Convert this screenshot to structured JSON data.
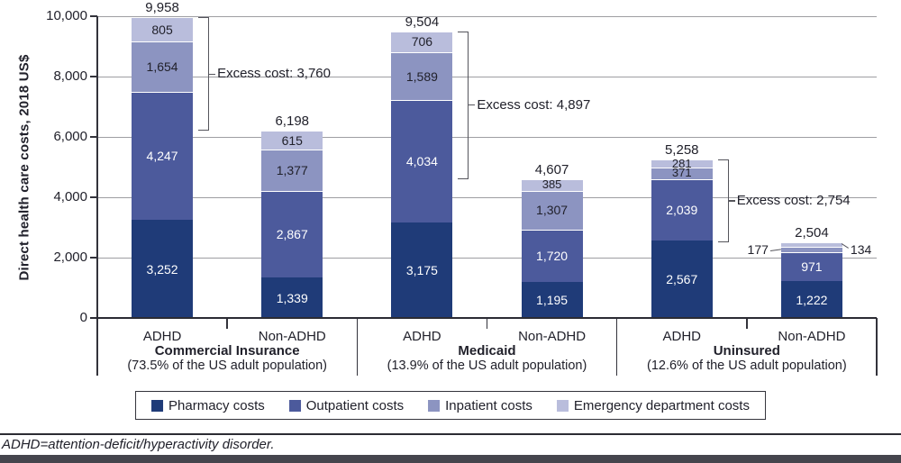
{
  "figure": {
    "y_axis_title": "Direct health care costs, 2018 US$",
    "footnote": "ADHD=attention-deficit/hyperactivity disorder.",
    "colors": {
      "text": "#21212b",
      "grid": "#9e9ea2",
      "axis": "#33333b",
      "bracket": "#55555c",
      "footer_bar": "#45454d"
    },
    "legend": [
      {
        "label": "Pharmacy costs",
        "color": "#1f3b78"
      },
      {
        "label": "Outpatient costs",
        "color": "#4c5a9c"
      },
      {
        "label": "Inpatient costs",
        "color": "#8c94c1"
      },
      {
        "label": "Emergency department costs",
        "color": "#b9bddc"
      }
    ]
  },
  "chart_data": {
    "type": "bar",
    "stacked": true,
    "title": "",
    "xlabel": "",
    "ylabel": "Direct health care costs, 2018 US$",
    "ylim": [
      0,
      10000
    ],
    "grid": true,
    "legend_position": "bottom",
    "yticks": [
      {
        "value": 0,
        "label": "0"
      },
      {
        "value": 2000,
        "label": "2,000"
      },
      {
        "value": 4000,
        "label": "4,000"
      },
      {
        "value": 6000,
        "label": "6,000"
      },
      {
        "value": 8000,
        "label": "8,000"
      },
      {
        "value": 10000,
        "label": "10,000"
      }
    ],
    "series_names": [
      "Pharmacy costs",
      "Outpatient costs",
      "Inpatient costs",
      "Emergency department costs"
    ],
    "groups": [
      {
        "name": "Commercial Insurance",
        "subtitle": "(73.5% of the US adult population)",
        "excess_cost_label": "Excess cost: 3,760",
        "excess_cost_value": 3760,
        "bars": [
          {
            "label": "ADHD",
            "total": 9958,
            "total_label": "9,958",
            "segments": [
              {
                "value": 3252,
                "label": "3,252"
              },
              {
                "value": 4247,
                "label": "4,247"
              },
              {
                "value": 1654,
                "label": "1,654"
              },
              {
                "value": 805,
                "label": "805"
              }
            ]
          },
          {
            "label": "Non-ADHD",
            "total": 6198,
            "total_label": "6,198",
            "segments": [
              {
                "value": 1339,
                "label": "1,339"
              },
              {
                "value": 2867,
                "label": "2,867"
              },
              {
                "value": 1377,
                "label": "1,377"
              },
              {
                "value": 615,
                "label": "615"
              }
            ]
          }
        ]
      },
      {
        "name": "Medicaid",
        "subtitle": "(13.9% of the US adult population)",
        "excess_cost_label": "Excess cost: 4,897",
        "excess_cost_value": 4897,
        "bars": [
          {
            "label": "ADHD",
            "total": 9504,
            "total_label": "9,504",
            "segments": [
              {
                "value": 3175,
                "label": "3,175"
              },
              {
                "value": 4034,
                "label": "4,034"
              },
              {
                "value": 1589,
                "label": "1,589"
              },
              {
                "value": 706,
                "label": "706"
              }
            ]
          },
          {
            "label": "Non-ADHD",
            "total": 4607,
            "total_label": "4,607",
            "segments": [
              {
                "value": 1195,
                "label": "1,195"
              },
              {
                "value": 1720,
                "label": "1,720"
              },
              {
                "value": 1307,
                "label": "1,307"
              },
              {
                "value": 385,
                "label": "385"
              }
            ]
          }
        ]
      },
      {
        "name": "Uninsured",
        "subtitle": "(12.6% of the US adult population)",
        "excess_cost_label": "Excess cost: 2,754",
        "excess_cost_value": 2754,
        "bars": [
          {
            "label": "ADHD",
            "total": 5258,
            "total_label": "5,258",
            "segments": [
              {
                "value": 2567,
                "label": "2,567"
              },
              {
                "value": 2039,
                "label": "2,039"
              },
              {
                "value": 371,
                "label": "371"
              },
              {
                "value": 281,
                "label": "281"
              }
            ]
          },
          {
            "label": "Non-ADHD",
            "total": 2504,
            "total_label": "2,504",
            "segments": [
              {
                "value": 1222,
                "label": "1,222"
              },
              {
                "value": 971,
                "label": "971"
              },
              {
                "value": 177,
                "label": "177",
                "label_outside": "left"
              },
              {
                "value": 134,
                "label": "134",
                "label_outside": "right"
              }
            ]
          }
        ]
      }
    ]
  }
}
